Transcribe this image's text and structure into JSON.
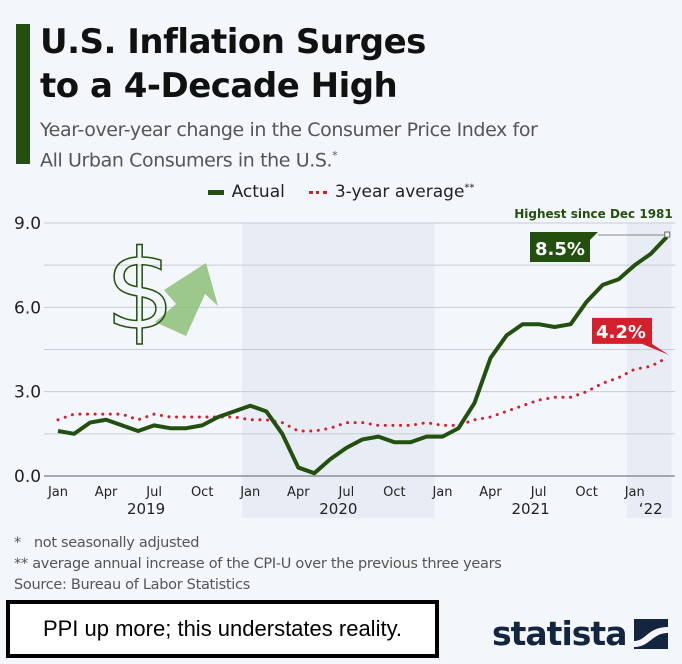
{
  "header": {
    "title_line1": "U.S. Inflation Surges",
    "title_line2": "to a 4-Decade High",
    "subtitle_line1": "Year-over-year change in the Consumer Price Index for",
    "subtitle_line2": "All Urban Consumers in the U.S.",
    "subtitle_mark": "*"
  },
  "legend": {
    "actual": "Actual",
    "average": "3-year average",
    "average_mark": "**"
  },
  "colors": {
    "actual": "#23500f",
    "average": "#d3202d",
    "shade": "#e8edf5",
    "grid": "#c8ccd2",
    "brand": "#14263f"
  },
  "chart_data": {
    "type": "line",
    "title": "U.S. Inflation Surges to a 4-Decade High",
    "xlabel": "",
    "ylabel": "",
    "ylim": [
      0,
      9
    ],
    "yticks": [
      "0.0",
      "3.0",
      "6.0",
      "9.0"
    ],
    "ytick_values": [
      0,
      3,
      6,
      9
    ],
    "grid": true,
    "legend_position": "top-center",
    "x_tick_labels": [
      {
        "label": "Jan",
        "index": 0
      },
      {
        "label": "Apr",
        "index": 3
      },
      {
        "label": "Jul",
        "index": 6
      },
      {
        "label": "Oct",
        "index": 9
      },
      {
        "label": "Jan",
        "index": 12
      },
      {
        "label": "Apr",
        "index": 15
      },
      {
        "label": "Jul",
        "index": 18
      },
      {
        "label": "Oct",
        "index": 21
      },
      {
        "label": "Jan",
        "index": 24
      },
      {
        "label": "Apr",
        "index": 27
      },
      {
        "label": "Jul",
        "index": 30
      },
      {
        "label": "Oct",
        "index": 33
      },
      {
        "label": "Jan",
        "index": 36
      }
    ],
    "year_labels": [
      {
        "label": "2019",
        "index": 5.5
      },
      {
        "label": "2020",
        "index": 17.5
      },
      {
        "label": "2021",
        "index": 29.5
      },
      {
        "label": "‘22",
        "index": 37
      }
    ],
    "shaded_periods": [
      [
        11.5,
        23.5
      ],
      [
        35.5,
        38.3
      ]
    ],
    "x": [
      "2019-01",
      "2019-02",
      "2019-03",
      "2019-04",
      "2019-05",
      "2019-06",
      "2019-07",
      "2019-08",
      "2019-09",
      "2019-10",
      "2019-11",
      "2019-12",
      "2020-01",
      "2020-02",
      "2020-03",
      "2020-04",
      "2020-05",
      "2020-06",
      "2020-07",
      "2020-08",
      "2020-09",
      "2020-10",
      "2020-11",
      "2020-12",
      "2021-01",
      "2021-02",
      "2021-03",
      "2021-04",
      "2021-05",
      "2021-06",
      "2021-07",
      "2021-08",
      "2021-09",
      "2021-10",
      "2021-11",
      "2021-12",
      "2022-01",
      "2022-02",
      "2022-03"
    ],
    "series": [
      {
        "name": "Actual",
        "values": [
          1.6,
          1.5,
          1.9,
          2.0,
          1.8,
          1.6,
          1.8,
          1.7,
          1.7,
          1.8,
          2.1,
          2.3,
          2.5,
          2.3,
          1.5,
          0.3,
          0.1,
          0.6,
          1.0,
          1.3,
          1.4,
          1.2,
          1.2,
          1.4,
          1.4,
          1.7,
          2.6,
          4.2,
          5.0,
          5.4,
          5.4,
          5.3,
          5.4,
          6.2,
          6.8,
          7.0,
          7.5,
          7.9,
          8.5
        ]
      },
      {
        "name": "3-year average",
        "values": [
          2.0,
          2.2,
          2.2,
          2.2,
          2.2,
          2.0,
          2.2,
          2.1,
          2.1,
          2.1,
          2.1,
          2.1,
          2.0,
          2.0,
          1.9,
          1.6,
          1.6,
          1.7,
          1.9,
          1.9,
          1.8,
          1.8,
          1.8,
          1.9,
          1.8,
          1.8,
          2.0,
          2.1,
          2.3,
          2.5,
          2.7,
          2.8,
          2.8,
          3.0,
          3.3,
          3.5,
          3.8,
          3.9,
          4.2
        ]
      }
    ],
    "annotations": [
      {
        "text": "Highest since Dec 1981",
        "series": "Actual",
        "index": 38
      },
      {
        "text": "8.5%",
        "series": "Actual",
        "index": 38
      },
      {
        "text": "4.2%",
        "series": "3-year average",
        "index": 38
      }
    ]
  },
  "footnotes": {
    "note1_mark": "*",
    "note1": "not seasonally adjusted",
    "note2_mark": "**",
    "note2": "average annual increase of the CPI-U over the previous three years",
    "source": "Source: Bureau of Labor Statistics"
  },
  "overlay_note": "PPI up more; this understates reality.",
  "logo": {
    "text": "statista"
  }
}
